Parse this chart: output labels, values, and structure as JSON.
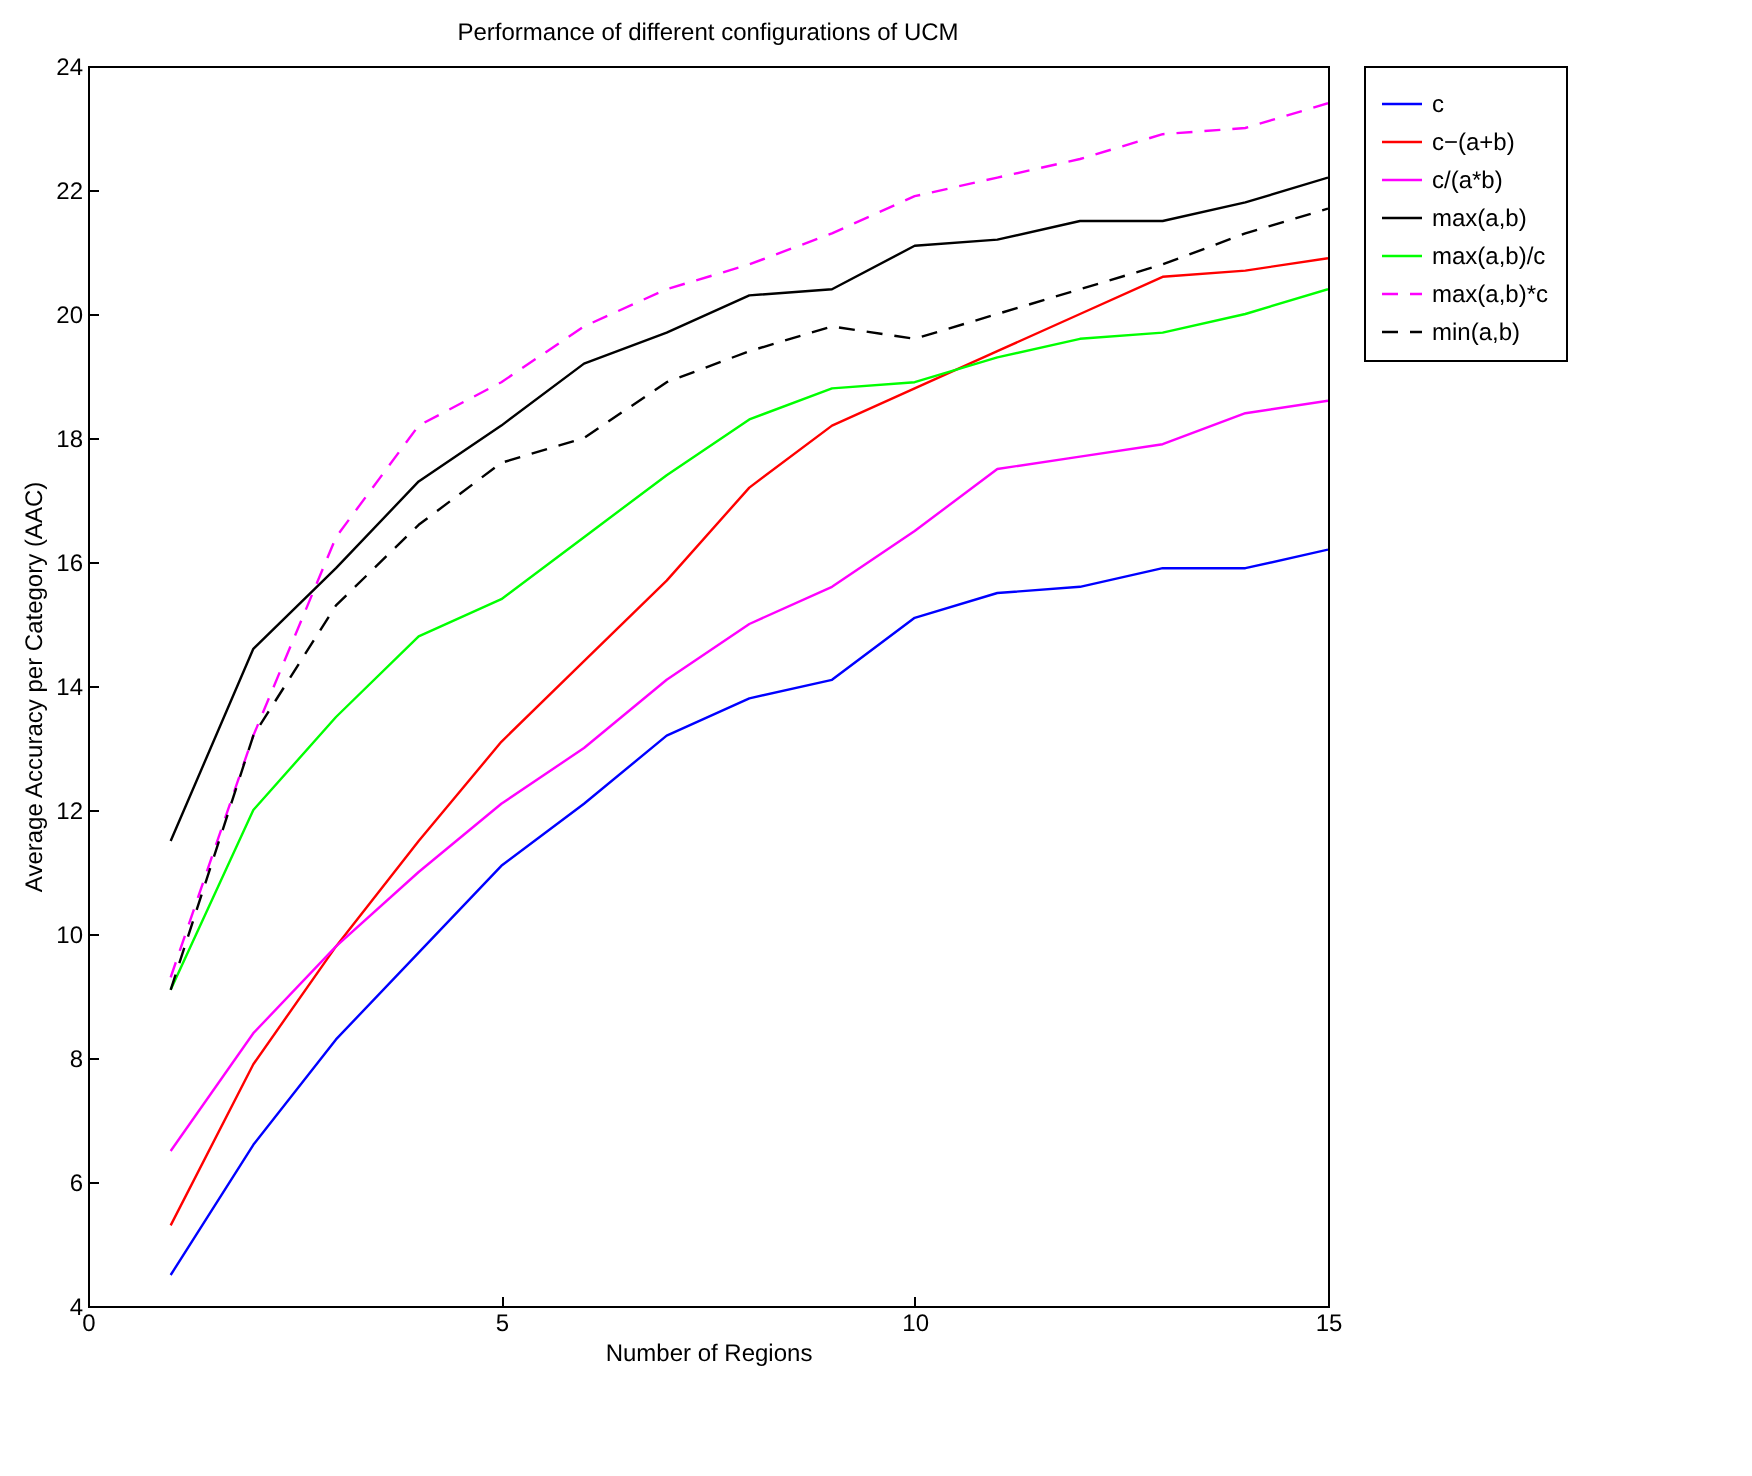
{
  "chart_data": {
    "type": "line",
    "title": "Performance of different configurations of UCM",
    "xlabel": "Number of Regions",
    "ylabel": "Average Accuracy per Category (AAC)",
    "x": [
      1,
      2,
      3,
      4,
      5,
      6,
      7,
      8,
      9,
      10,
      11,
      12,
      13,
      14,
      15
    ],
    "xlim": [
      0,
      15
    ],
    "xticks": [
      0,
      5,
      10,
      15
    ],
    "ylim": [
      4,
      24
    ],
    "yticks": [
      4,
      6,
      8,
      10,
      12,
      14,
      16,
      18,
      20,
      22,
      24
    ],
    "grid": false,
    "legend": "right",
    "series": [
      {
        "name": "c",
        "color": "#0000ff",
        "values": [
          4.5,
          6.6,
          8.3,
          9.7,
          11.1,
          12.1,
          13.2,
          13.8,
          14.1,
          15.1,
          15.5,
          15.6,
          15.9,
          15.9,
          16.2
        ]
      },
      {
        "name": "c−(a+b)",
        "color": "#ff0000",
        "values": [
          5.3,
          7.9,
          9.8,
          11.5,
          13.1,
          14.4,
          15.7,
          17.2,
          18.2,
          18.8,
          19.4,
          20.0,
          20.6,
          20.7,
          20.9
        ]
      },
      {
        "name": "c/(a*b)",
        "color": "#ff00ff",
        "values": [
          6.5,
          8.4,
          9.8,
          11.0,
          12.1,
          13.0,
          14.1,
          15.0,
          15.6,
          16.5,
          17.5,
          17.7,
          17.9,
          18.4,
          18.6
        ]
      },
      {
        "name": "max(a,b)",
        "color": "#000000",
        "values": [
          11.5,
          14.6,
          15.9,
          17.3,
          18.2,
          19.2,
          19.7,
          20.3,
          20.4,
          21.1,
          21.2,
          21.5,
          21.5,
          21.8,
          22.2
        ]
      },
      {
        "name": "max(a,b)/c",
        "color": "#00ff00",
        "values": [
          9.1,
          12.0,
          13.5,
          14.8,
          15.4,
          16.4,
          17.4,
          18.3,
          18.8,
          18.9,
          19.3,
          19.6,
          19.7,
          20.0,
          20.4
        ]
      },
      {
        "name": "max(a,b)*c",
        "color": "#ff00ff",
        "line_style": "dashed",
        "values": [
          9.3,
          13.2,
          16.4,
          18.2,
          18.9,
          19.8,
          20.4,
          20.8,
          21.3,
          21.9,
          22.2,
          22.5,
          22.9,
          23.0,
          23.4
        ]
      },
      {
        "name": "min(a,b)",
        "color": "#000000",
        "line_style": "dashed",
        "values": [
          9.1,
          13.2,
          15.3,
          16.6,
          17.6,
          18.0,
          18.9,
          19.4,
          19.8,
          19.6,
          20.0,
          20.4,
          20.8,
          21.3,
          21.7
        ]
      }
    ]
  }
}
